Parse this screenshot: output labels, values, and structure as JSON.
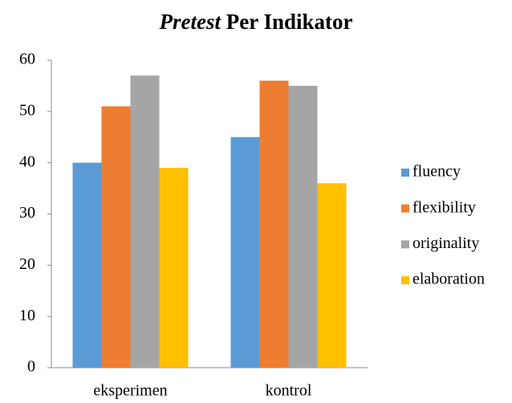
{
  "chart_data": {
    "type": "bar",
    "title": "Pretest Per Indikator",
    "categories": [
      "eksperimen",
      "kontrol"
    ],
    "series": [
      {
        "name": "fluency",
        "color": "#5b9bd5",
        "values": [
          40,
          45
        ]
      },
      {
        "name": "flexibility",
        "color": "#ed7d31",
        "values": [
          51,
          56
        ]
      },
      {
        "name": "originality",
        "color": "#a5a5a5",
        "values": [
          57,
          55
        ]
      },
      {
        "name": "elaboration",
        "color": "#ffc000",
        "values": [
          39,
          36
        ]
      }
    ],
    "ylim": [
      0,
      60
    ],
    "yticks": [
      0,
      10,
      20,
      30,
      40,
      50,
      60
    ],
    "grid": false,
    "legend": "right"
  }
}
